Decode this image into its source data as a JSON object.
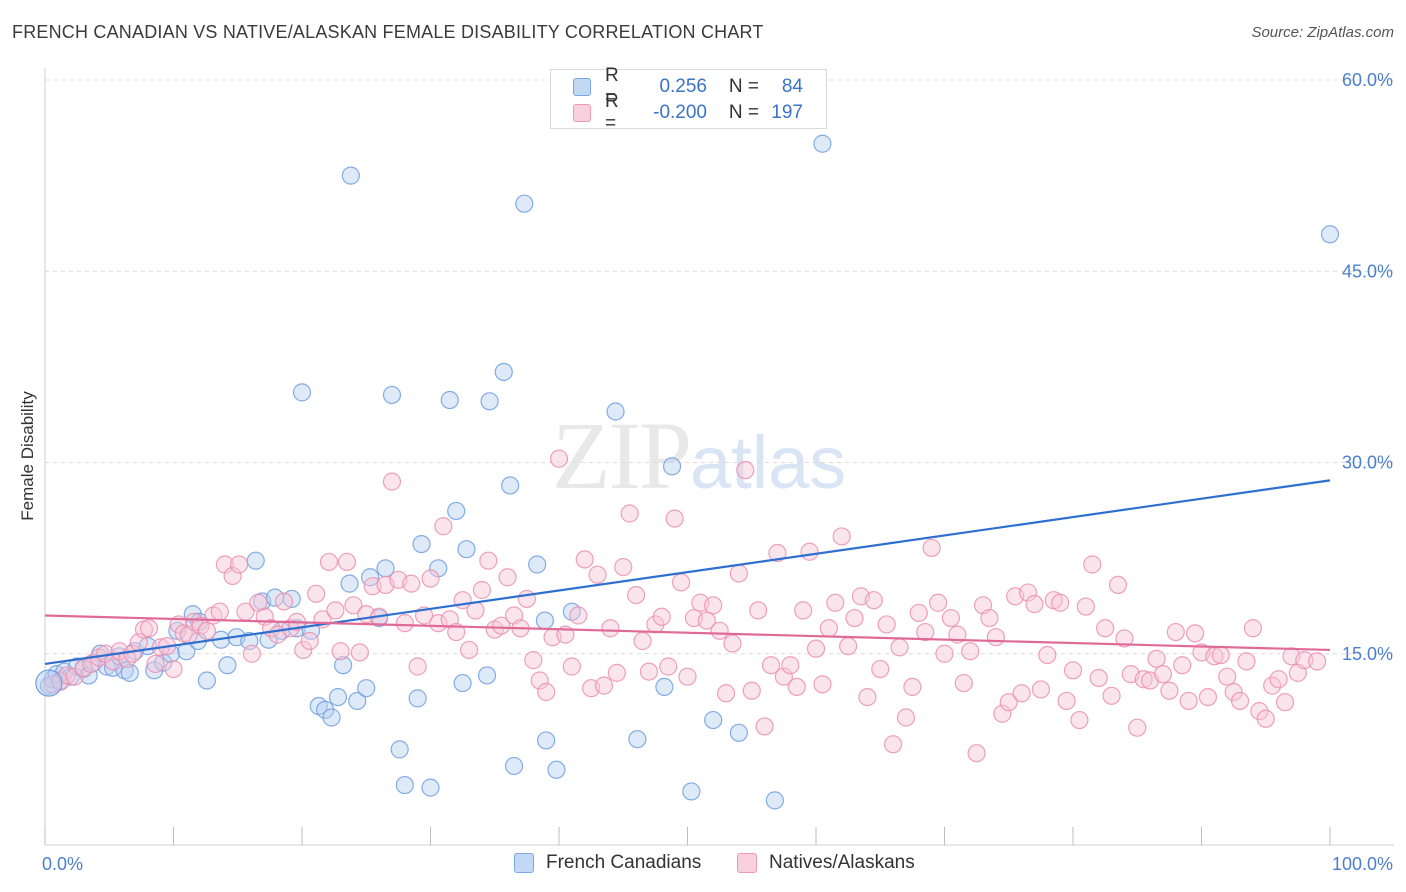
{
  "header": {
    "title": "FRENCH CANADIAN VS NATIVE/ALASKAN FEMALE DISABILITY CORRELATION CHART",
    "source": "Source: ZipAtlas.com"
  },
  "watermark": {
    "zip": "ZIP",
    "atlas": "atlas"
  },
  "legend_top": {
    "rows": [
      {
        "r_label": "R =",
        "r_value": "0.256",
        "n_label": "N =",
        "n_value": "84",
        "color": "#a9c6ef"
      },
      {
        "r_label": "R =",
        "r_value": "-0.200",
        "n_label": "N =",
        "n_value": "197",
        "color": "#f5b6c9"
      }
    ]
  },
  "legend_bottom": [
    {
      "label": "French Canadians",
      "color": "#a9c6ef"
    },
    {
      "label": "Natives/Alaskans",
      "color": "#f5b6c9"
    }
  ],
  "chart_data": {
    "type": "scatter",
    "title": "FRENCH CANADIAN VS NATIVE/ALASKAN FEMALE DISABILITY CORRELATION CHART",
    "xlabel": "",
    "ylabel": "Female Disability",
    "xlim": [
      0,
      100
    ],
    "ylim": [
      0,
      60
    ],
    "x_tick_labels": [
      "0.0%",
      "100.0%"
    ],
    "y_ticks": [
      15,
      30,
      45,
      60
    ],
    "y_tick_labels": [
      "15.0%",
      "30.0%",
      "45.0%",
      "60.0%"
    ],
    "grid": "horizontal dashed",
    "legend_position": "top-center",
    "series": [
      {
        "name": "French Canadians",
        "color": "#6f9fe0",
        "fill": "#b7d0f2",
        "trend": {
          "x0": 0,
          "y0": 14.2,
          "x1": 100,
          "y1": 28.6,
          "color": "#2f6fd0"
        },
        "points": [
          [
            0.3,
            12.5
          ],
          [
            0.6,
            13.0
          ],
          [
            0.9,
            13.4
          ],
          [
            1.2,
            12.9
          ],
          [
            1.5,
            13.6
          ],
          [
            2.0,
            13.2
          ],
          [
            2.5,
            14.0
          ],
          [
            3.0,
            13.8
          ],
          [
            3.4,
            13.3
          ],
          [
            3.8,
            14.3
          ],
          [
            4.3,
            15.0
          ],
          [
            4.8,
            14.0
          ],
          [
            5.3,
            13.9
          ],
          [
            5.8,
            14.8
          ],
          [
            6.2,
            13.7
          ],
          [
            6.6,
            13.5
          ],
          [
            7.0,
            15.2
          ],
          [
            8.0,
            15.6
          ],
          [
            8.5,
            13.7
          ],
          [
            9.2,
            14.3
          ],
          [
            9.8,
            15.0
          ],
          [
            10.3,
            16.8
          ],
          [
            11.0,
            15.2
          ],
          [
            11.5,
            18.1
          ],
          [
            12.0,
            17.5
          ],
          [
            11.9,
            16.0
          ],
          [
            12.6,
            12.9
          ],
          [
            13.7,
            16.1
          ],
          [
            14.2,
            14.1
          ],
          [
            14.9,
            16.3
          ],
          [
            15.9,
            16.0
          ],
          [
            16.4,
            22.3
          ],
          [
            16.9,
            19.1
          ],
          [
            17.4,
            16.1
          ],
          [
            17.9,
            19.4
          ],
          [
            18.4,
            16.8
          ],
          [
            19.2,
            19.3
          ],
          [
            19.6,
            17.0
          ],
          [
            20.0,
            35.5
          ],
          [
            20.7,
            16.8
          ],
          [
            21.3,
            10.9
          ],
          [
            21.8,
            10.6
          ],
          [
            22.3,
            10.0
          ],
          [
            22.8,
            11.6
          ],
          [
            23.2,
            14.1
          ],
          [
            23.7,
            20.5
          ],
          [
            23.8,
            52.5
          ],
          [
            24.3,
            11.3
          ],
          [
            25.0,
            12.3
          ],
          [
            25.3,
            21.0
          ],
          [
            26.0,
            17.8
          ],
          [
            26.5,
            21.7
          ],
          [
            27.0,
            35.3
          ],
          [
            27.6,
            7.5
          ],
          [
            28.0,
            4.7
          ],
          [
            29.0,
            11.5
          ],
          [
            29.3,
            23.6
          ],
          [
            30.0,
            4.5
          ],
          [
            30.6,
            21.7
          ],
          [
            31.5,
            34.9
          ],
          [
            32.0,
            26.2
          ],
          [
            32.5,
            12.7
          ],
          [
            32.8,
            23.2
          ],
          [
            34.4,
            13.3
          ],
          [
            34.6,
            34.8
          ],
          [
            35.7,
            37.1
          ],
          [
            36.2,
            28.2
          ],
          [
            36.5,
            6.2
          ],
          [
            37.3,
            50.3
          ],
          [
            38.3,
            22.0
          ],
          [
            38.9,
            17.6
          ],
          [
            39.0,
            8.2
          ],
          [
            39.8,
            5.9
          ],
          [
            41.0,
            18.3
          ],
          [
            44.4,
            34.0
          ],
          [
            46.1,
            8.3
          ],
          [
            48.2,
            12.4
          ],
          [
            48.8,
            29.7
          ],
          [
            50.3,
            4.2
          ],
          [
            52.0,
            9.8
          ],
          [
            54.0,
            8.8
          ],
          [
            56.8,
            3.5
          ],
          [
            60.5,
            55.0
          ],
          [
            100.0,
            47.9
          ]
        ]
      },
      {
        "name": "Natives/Alaskans",
        "color": "#eb8fae",
        "fill": "#f7c5d6",
        "trend": {
          "x0": 0,
          "y0": 18.0,
          "x1": 100,
          "y1": 15.3,
          "color": "#e06a96"
        },
        "points": [
          [
            0.6,
            12.6
          ],
          [
            1.2,
            12.8
          ],
          [
            1.7,
            13.3
          ],
          [
            2.3,
            13.2
          ],
          [
            3.0,
            13.9
          ],
          [
            3.6,
            14.2
          ],
          [
            4.2,
            14.7
          ],
          [
            4.7,
            15.0
          ],
          [
            5.3,
            14.4
          ],
          [
            5.8,
            15.2
          ],
          [
            6.4,
            14.6
          ],
          [
            6.8,
            15.0
          ],
          [
            7.3,
            15.9
          ],
          [
            7.7,
            16.9
          ],
          [
            8.1,
            17.0
          ],
          [
            8.6,
            14.2
          ],
          [
            9.0,
            15.5
          ],
          [
            9.5,
            15.6
          ],
          [
            10.0,
            13.8
          ],
          [
            10.4,
            17.3
          ],
          [
            10.8,
            16.6
          ],
          [
            11.2,
            16.5
          ],
          [
            11.6,
            17.5
          ],
          [
            12.1,
            17.2
          ],
          [
            12.6,
            16.8
          ],
          [
            13.1,
            18.0
          ],
          [
            13.6,
            18.3
          ],
          [
            14.0,
            22.0
          ],
          [
            14.6,
            21.1
          ],
          [
            15.1,
            22.0
          ],
          [
            15.6,
            18.3
          ],
          [
            16.1,
            15.0
          ],
          [
            16.6,
            19.0
          ],
          [
            17.1,
            17.9
          ],
          [
            17.6,
            17.0
          ],
          [
            18.1,
            16.5
          ],
          [
            18.6,
            19.1
          ],
          [
            19.1,
            17.0
          ],
          [
            19.6,
            17.5
          ],
          [
            20.1,
            15.3
          ],
          [
            20.6,
            16.0
          ],
          [
            21.1,
            19.7
          ],
          [
            21.6,
            17.7
          ],
          [
            22.1,
            22.2
          ],
          [
            22.6,
            18.4
          ],
          [
            23.0,
            15.2
          ],
          [
            23.5,
            22.2
          ],
          [
            24.0,
            18.8
          ],
          [
            24.5,
            15.1
          ],
          [
            25.0,
            18.1
          ],
          [
            25.5,
            20.3
          ],
          [
            26.0,
            17.9
          ],
          [
            26.5,
            20.4
          ],
          [
            27.0,
            28.5
          ],
          [
            27.5,
            20.8
          ],
          [
            28.0,
            17.4
          ],
          [
            28.5,
            20.5
          ],
          [
            29.0,
            14.0
          ],
          [
            29.5,
            18.0
          ],
          [
            30.0,
            20.9
          ],
          [
            30.6,
            17.4
          ],
          [
            31.0,
            25.0
          ],
          [
            31.5,
            17.7
          ],
          [
            32.0,
            16.7
          ],
          [
            32.5,
            19.2
          ],
          [
            33.0,
            15.3
          ],
          [
            33.5,
            18.4
          ],
          [
            34.0,
            20.0
          ],
          [
            34.5,
            22.3
          ],
          [
            35.0,
            16.9
          ],
          [
            35.5,
            17.2
          ],
          [
            36.0,
            21.0
          ],
          [
            36.5,
            18.0
          ],
          [
            37.0,
            17.0
          ],
          [
            37.5,
            19.3
          ],
          [
            38.0,
            14.5
          ],
          [
            38.5,
            12.9
          ],
          [
            39.0,
            12.0
          ],
          [
            39.5,
            16.3
          ],
          [
            40.0,
            30.3
          ],
          [
            40.5,
            16.5
          ],
          [
            41.0,
            14.0
          ],
          [
            41.5,
            18.0
          ],
          [
            42.0,
            22.4
          ],
          [
            42.5,
            12.3
          ],
          [
            43.0,
            21.2
          ],
          [
            43.5,
            12.5
          ],
          [
            44.0,
            17.0
          ],
          [
            44.5,
            13.5
          ],
          [
            45.0,
            21.8
          ],
          [
            45.5,
            26.0
          ],
          [
            46.0,
            19.6
          ],
          [
            46.5,
            16.0
          ],
          [
            47.0,
            13.6
          ],
          [
            47.5,
            17.3
          ],
          [
            48.0,
            17.9
          ],
          [
            48.5,
            14.0
          ],
          [
            49.0,
            25.6
          ],
          [
            49.5,
            20.6
          ],
          [
            50.0,
            13.2
          ],
          [
            50.5,
            17.8
          ],
          [
            51.0,
            19.0
          ],
          [
            51.5,
            17.6
          ],
          [
            52.0,
            18.8
          ],
          [
            52.5,
            16.8
          ],
          [
            53.0,
            11.9
          ],
          [
            53.5,
            15.8
          ],
          [
            54.0,
            21.3
          ],
          [
            54.5,
            29.4
          ],
          [
            55.0,
            12.1
          ],
          [
            55.5,
            18.4
          ],
          [
            56.0,
            9.3
          ],
          [
            56.5,
            14.1
          ],
          [
            57.0,
            22.9
          ],
          [
            57.5,
            13.2
          ],
          [
            58.0,
            14.1
          ],
          [
            58.5,
            12.4
          ],
          [
            59.0,
            18.4
          ],
          [
            59.5,
            23.0
          ],
          [
            60.0,
            15.4
          ],
          [
            60.5,
            12.6
          ],
          [
            61.0,
            17.0
          ],
          [
            61.5,
            19.0
          ],
          [
            62.0,
            24.2
          ],
          [
            62.5,
            15.6
          ],
          [
            63.0,
            17.8
          ],
          [
            63.5,
            19.5
          ],
          [
            64.0,
            11.6
          ],
          [
            64.5,
            19.2
          ],
          [
            65.0,
            13.8
          ],
          [
            65.5,
            17.3
          ],
          [
            66.0,
            7.9
          ],
          [
            66.5,
            15.5
          ],
          [
            67.0,
            10.0
          ],
          [
            67.5,
            12.4
          ],
          [
            68.0,
            18.2
          ],
          [
            68.5,
            16.7
          ],
          [
            69.0,
            23.3
          ],
          [
            69.5,
            19.0
          ],
          [
            70.0,
            15.0
          ],
          [
            70.5,
            17.8
          ],
          [
            71.0,
            16.5
          ],
          [
            71.5,
            12.7
          ],
          [
            72.0,
            15.2
          ],
          [
            72.5,
            7.2
          ],
          [
            73.0,
            18.8
          ],
          [
            73.5,
            17.8
          ],
          [
            74.0,
            16.3
          ],
          [
            74.5,
            10.3
          ],
          [
            75.0,
            11.2
          ],
          [
            75.5,
            19.5
          ],
          [
            76.0,
            11.9
          ],
          [
            76.5,
            19.8
          ],
          [
            77.0,
            18.9
          ],
          [
            77.5,
            12.2
          ],
          [
            78.0,
            14.9
          ],
          [
            78.5,
            19.2
          ],
          [
            79.0,
            19.0
          ],
          [
            79.5,
            11.3
          ],
          [
            80.0,
            13.7
          ],
          [
            80.5,
            9.8
          ],
          [
            81.0,
            18.7
          ],
          [
            81.5,
            22.0
          ],
          [
            82.0,
            13.1
          ],
          [
            82.5,
            17.0
          ],
          [
            83.0,
            11.7
          ],
          [
            83.5,
            20.4
          ],
          [
            84.0,
            16.2
          ],
          [
            84.5,
            13.4
          ],
          [
            85.0,
            9.2
          ],
          [
            85.5,
            13.0
          ],
          [
            86.0,
            12.9
          ],
          [
            86.5,
            14.6
          ],
          [
            87.0,
            13.4
          ],
          [
            87.5,
            12.1
          ],
          [
            88.0,
            16.7
          ],
          [
            88.5,
            14.1
          ],
          [
            89.0,
            11.3
          ],
          [
            89.5,
            16.6
          ],
          [
            90.0,
            15.1
          ],
          [
            90.5,
            11.6
          ],
          [
            91.0,
            14.8
          ],
          [
            91.5,
            14.9
          ],
          [
            92.0,
            13.2
          ],
          [
            92.5,
            12.0
          ],
          [
            93.0,
            11.3
          ],
          [
            93.5,
            14.4
          ],
          [
            94.0,
            17.0
          ],
          [
            94.5,
            10.5
          ],
          [
            95.0,
            9.9
          ],
          [
            95.5,
            12.5
          ],
          [
            96.0,
            13.0
          ],
          [
            96.5,
            11.2
          ],
          [
            97.0,
            14.8
          ],
          [
            97.5,
            13.5
          ],
          [
            98.0,
            14.5
          ],
          [
            99.0,
            14.4
          ]
        ]
      }
    ]
  }
}
